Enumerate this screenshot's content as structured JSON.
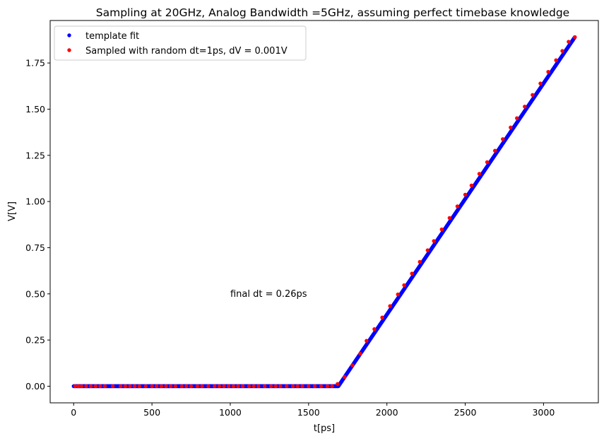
{
  "chart_data": {
    "type": "scatter",
    "title": "Sampling at 20GHz, Analog Bandwidth =5GHz, assuming perfect timebase knowledge",
    "xlabel": "t[ps]",
    "ylabel": "V[V]",
    "xlim": [
      -150,
      3350
    ],
    "ylim": [
      -0.09,
      1.98
    ],
    "xticks": [
      0,
      500,
      1000,
      1500,
      2000,
      2500,
      3000
    ],
    "xtick_labels": [
      "0",
      "500",
      "1000",
      "1500",
      "2000",
      "2500",
      "3000"
    ],
    "yticks": [
      0.0,
      0.25,
      0.5,
      0.75,
      1.0,
      1.25,
      1.5,
      1.75
    ],
    "ytick_labels": [
      "0.00",
      "0.25",
      "0.50",
      "0.75",
      "1.00",
      "1.25",
      "1.50",
      "1.75"
    ],
    "grid": false,
    "legend_position": "upper-left",
    "series": [
      {
        "name": "template fit",
        "color": "#0000ff",
        "marker": "dot",
        "x_range": [
          0,
          3200
        ],
        "step_ps": 2,
        "model": "flat 0 V until 1690 ps, then linear ramp to 1.89 V at 3200 ps"
      },
      {
        "name": "Sampled with random dt=1ps, dV = 0.001V",
        "color": "#ff0000",
        "marker": "dot",
        "x": [
          10,
          30,
          50,
          80,
          110,
          140,
          170,
          200,
          250,
          300,
          330,
          360,
          390,
          420,
          460,
          500,
          530,
          560,
          590,
          620,
          650,
          690,
          720,
          750,
          790,
          820,
          860,
          900,
          930,
          960,
          990,
          1020,
          1050,
          1080,
          1120,
          1150,
          1180,
          1220,
          1260,
          1290,
          1320,
          1360,
          1400,
          1430,
          1460,
          1500,
          1540,
          1580,
          1620,
          1650,
          1685,
          1730,
          1780,
          1830,
          1870,
          1920,
          1970,
          2020,
          2070,
          2110,
          2160,
          2210,
          2260,
          2300,
          2350,
          2400,
          2450,
          2500,
          2540,
          2590,
          2640,
          2690,
          2740,
          2790,
          2830,
          2880,
          2930,
          2980,
          3030,
          3080,
          3120,
          3160,
          3200
        ],
        "y": [
          0,
          0,
          0,
          0,
          0,
          0,
          0,
          0,
          0,
          0,
          0,
          0,
          0,
          0,
          0,
          0,
          0,
          0,
          0,
          0,
          0,
          0,
          0,
          0,
          0,
          0,
          0,
          0,
          0,
          0,
          0,
          0,
          0,
          0,
          0,
          0,
          0,
          0,
          0,
          0,
          0,
          0,
          0,
          0,
          0,
          0,
          0,
          0,
          0,
          0,
          0.012,
          0.05,
          0.113,
          0.176,
          0.246,
          0.309,
          0.372,
          0.434,
          0.497,
          0.547,
          0.61,
          0.673,
          0.736,
          0.786,
          0.849,
          0.911,
          0.974,
          1.037,
          1.087,
          1.15,
          1.213,
          1.275,
          1.338,
          1.401,
          1.451,
          1.514,
          1.577,
          1.639,
          1.702,
          1.765,
          1.815,
          1.865,
          1.89
        ]
      }
    ],
    "annotations": [
      {
        "text": "final dt = 0.26ps",
        "x": 1000,
        "y": 0.5
      }
    ]
  }
}
